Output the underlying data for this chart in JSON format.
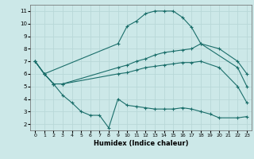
{
  "xlabel": "Humidex (Indice chaleur)",
  "bg_color": "#cce8e8",
  "grid_color": "#b8d8d8",
  "line_color": "#1a6e6a",
  "xlim": [
    -0.5,
    23.5
  ],
  "ylim": [
    1.5,
    11.5
  ],
  "yticks": [
    2,
    3,
    4,
    5,
    6,
    7,
    8,
    9,
    10,
    11
  ],
  "xticks": [
    0,
    1,
    2,
    3,
    4,
    5,
    6,
    7,
    8,
    9,
    10,
    11,
    12,
    13,
    14,
    15,
    16,
    17,
    18,
    19,
    20,
    21,
    22,
    23
  ],
  "series": [
    {
      "x": [
        0,
        1,
        9,
        10,
        11,
        12,
        13,
        14,
        15,
        16,
        17,
        18,
        22,
        23
      ],
      "y": [
        7,
        6,
        8.4,
        9.8,
        10.2,
        10.8,
        11.0,
        11.0,
        11.0,
        10.5,
        9.7,
        8.4,
        6.5,
        5.0
      ]
    },
    {
      "x": [
        0,
        1,
        2,
        3,
        9,
        10,
        11,
        12,
        13,
        14,
        15,
        16,
        17,
        18,
        20,
        22,
        23
      ],
      "y": [
        7,
        6,
        5.2,
        5.2,
        6.5,
        6.7,
        7.0,
        7.2,
        7.5,
        7.7,
        7.8,
        7.9,
        8.0,
        8.4,
        8.0,
        7.0,
        6.0
      ]
    },
    {
      "x": [
        0,
        1,
        2,
        3,
        9,
        10,
        11,
        12,
        13,
        14,
        15,
        16,
        17,
        18,
        20,
        22,
        23
      ],
      "y": [
        7,
        6,
        5.2,
        5.2,
        6.0,
        6.1,
        6.3,
        6.5,
        6.6,
        6.7,
        6.8,
        6.9,
        6.9,
        7.0,
        6.5,
        5.0,
        3.7
      ]
    },
    {
      "x": [
        0,
        1,
        2,
        3,
        4,
        5,
        6,
        7,
        8,
        9,
        10,
        11,
        12,
        13,
        14,
        15,
        16,
        17,
        18,
        19,
        20,
        22,
        23
      ],
      "y": [
        7,
        6,
        5.2,
        4.3,
        3.7,
        3.0,
        2.7,
        2.7,
        1.7,
        4.0,
        3.5,
        3.4,
        3.3,
        3.2,
        3.2,
        3.2,
        3.3,
        3.2,
        3.0,
        2.8,
        2.5,
        2.5,
        2.6
      ]
    }
  ]
}
